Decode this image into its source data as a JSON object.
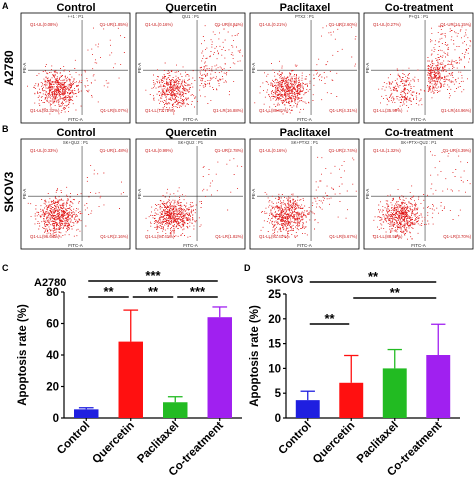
{
  "panel_letters": [
    "A",
    "B",
    "C",
    "D"
  ],
  "flow": {
    "row_labels": [
      "A2780",
      "SKOV3"
    ],
    "column_titles": [
      "Control",
      "Quercetin",
      "Paclitaxel",
      "Co-treatment"
    ],
    "x_axis_label": "FITC-A",
    "y_axis_label": "PE-A",
    "sample_headers": [
      [
        "++1 : P1",
        "QU1 : P1",
        "PTX2 : P1",
        "P+Q1 : P1"
      ],
      [
        "SK+QU2 : P1",
        "SK+QU2 : P1",
        "SK+PTX2 : P1",
        "SK+PTX+QU2 : P1"
      ]
    ],
    "quadrants": [
      [
        [
          "Q1-UL(0.08%)",
          "Q1-UR(1.85%)",
          "Q1-LL(93.32%)",
          "Q1-LR(5.07%)"
        ],
        [
          "Q1-UL(0.16%)",
          "Q1-UR(8.84%)",
          "Q1-LL(73.72%)",
          "Q1-LR(16.88%)"
        ],
        [
          "Q1-UL(0.21%)",
          "Q1-UR(2.60%)",
          "Q1-LL(89.81%)",
          "Q1-LR(4.31%)"
        ],
        [
          "Q1-UL(0.27%)",
          "Q1-UR(14.15%)",
          "Q1-LL(35.90%)",
          "Q1-LR(44.96%)"
        ]
      ],
      [
        [
          "Q1-UL(0.33%)",
          "Q1-UR(1.48%)",
          "Q1-LL(96.64%)",
          "Q1-LR(2.16%)"
        ],
        [
          "Q1-UL(0.99%)",
          "Q1-UR(2.78%)",
          "Q1-LL(94.41%)",
          "Q1-LR(1.82%)"
        ],
        [
          "Q1-UL(0.16%)",
          "Q1-UR(2.74%)",
          "Q1-LL(91.41%)",
          "Q1-LR(5.67%)"
        ],
        [
          "Q1-UL(1.32%)",
          "Q1-UR(4.39%)",
          "Q1-LL(88.59%)",
          "Q1-LR(3.70%)"
        ]
      ]
    ]
  },
  "chart_data": [
    {
      "type": "bar",
      "title": "A2780",
      "categories": [
        "Control",
        "Quercetin",
        "Paclitaxel",
        "Co-treatment"
      ],
      "values": [
        5.5,
        48.5,
        10,
        64
      ],
      "errors": [
        1,
        20,
        3.5,
        6.5
      ],
      "ylabel": "Apoptosis rate (%)",
      "ylim": [
        0,
        80
      ],
      "yticks": [
        "0",
        "20",
        "40",
        "60",
        "80"
      ],
      "colors": [
        "#1f1fe0",
        "#ff1010",
        "#22bb22",
        "#a020f0"
      ],
      "significance": [
        {
          "from": 0,
          "to": 1,
          "label": "**"
        },
        {
          "from": 1,
          "to": 2,
          "label": "**"
        },
        {
          "from": 2,
          "to": 3,
          "label": "***"
        },
        {
          "from": 0,
          "to": 3,
          "label": "***"
        }
      ]
    },
    {
      "type": "bar",
      "title": "SKOV3",
      "categories": [
        "Control",
        "Quercetin",
        "Paclitaxel",
        "Co-treatment"
      ],
      "values": [
        3.6,
        7.1,
        10,
        12.7
      ],
      "errors": [
        1.8,
        5.5,
        3.8,
        6.2
      ],
      "ylabel": "Apoptosis rate (%)",
      "ylim": [
        0,
        25
      ],
      "yticks": [
        "0",
        "5",
        "10",
        "15",
        "20",
        "25"
      ],
      "colors": [
        "#1f1fe0",
        "#ff1010",
        "#22bb22",
        "#a020f0"
      ],
      "significance": [
        {
          "from": 0,
          "to": 1,
          "label": "**"
        },
        {
          "from": 1,
          "to": 3,
          "label": "**"
        },
        {
          "from": 0,
          "to": 3,
          "label": "**"
        }
      ]
    }
  ]
}
